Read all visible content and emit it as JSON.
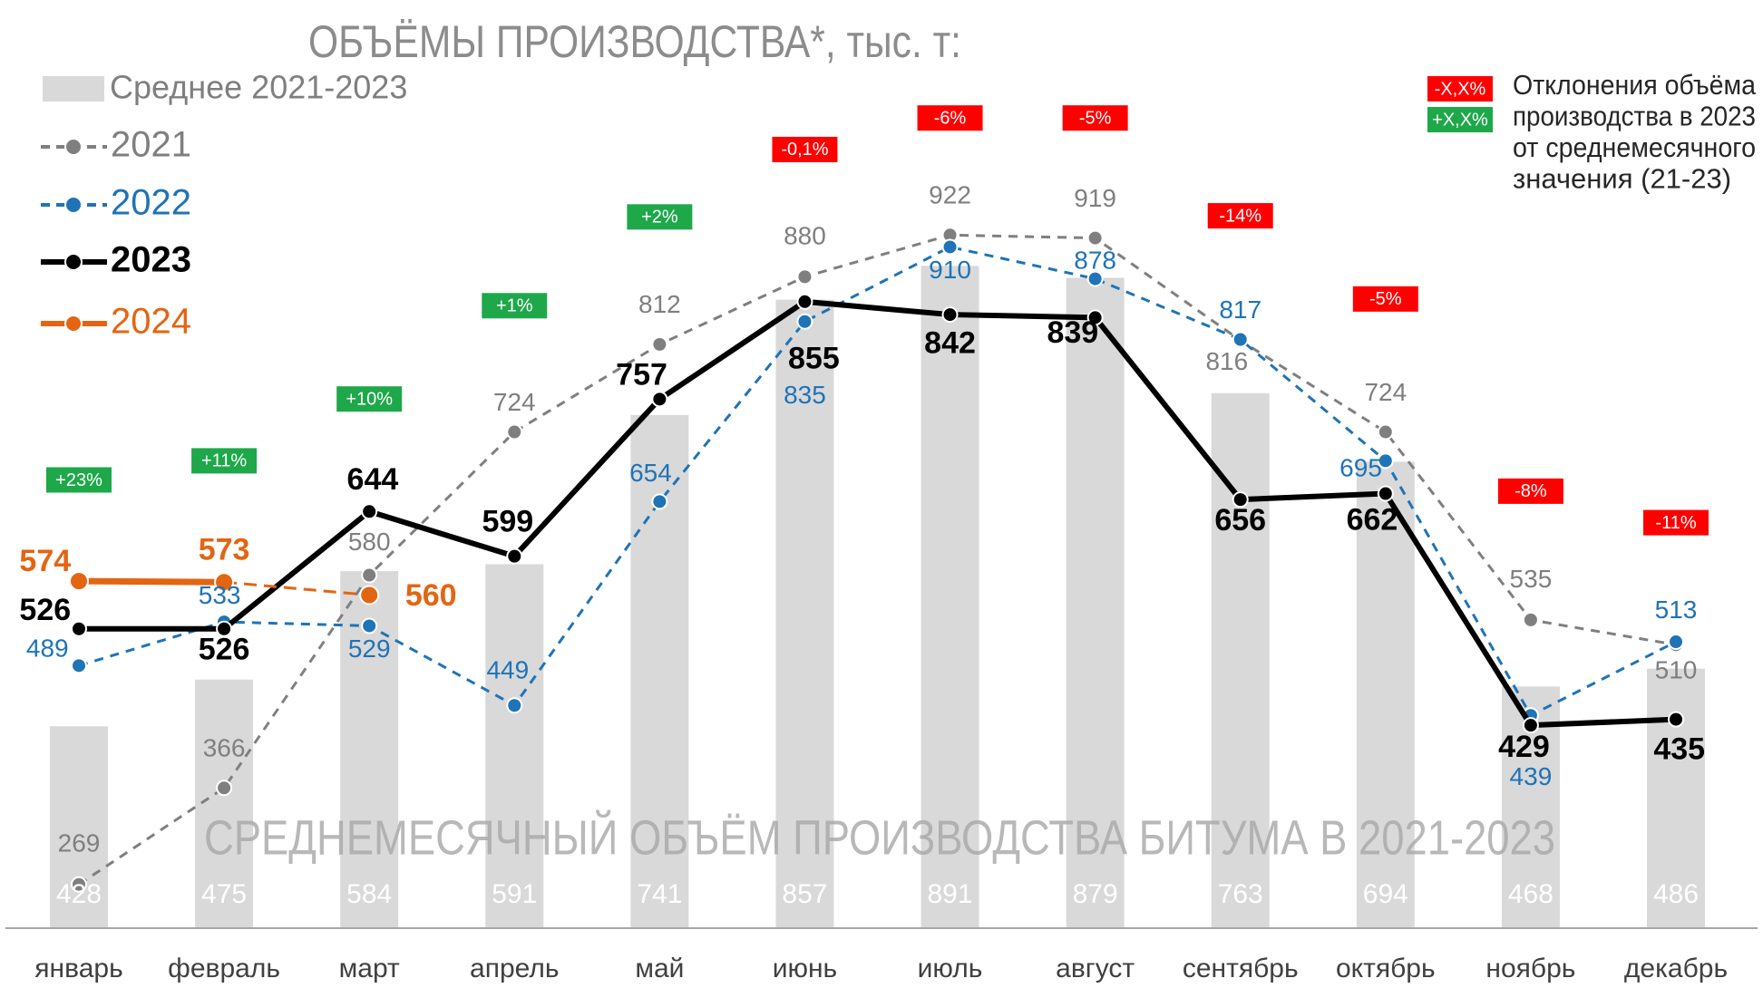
{
  "chart_data": {
    "type": "line",
    "title": "ОБЪЁМЫ ПРОИЗВОДСТВА*, тыс. т:",
    "annotation": "СРЕДНЕМЕСЯЧНЫЙ ОБЪЁМ ПРОИЗВОДСТВА БИТУМА В 2021-2023",
    "categories": [
      "январь",
      "февраль",
      "март",
      "апрель",
      "май",
      "июнь",
      "июль",
      "август",
      "сентябрь",
      "октябрь",
      "ноябрь",
      "декабрь"
    ],
    "ylim": [
      225,
      1100
    ],
    "series": [
      {
        "name": "Среднее 2021-2023",
        "type": "bar",
        "color": "#d9d9d9",
        "values": [
          428,
          475,
          584,
          591,
          741,
          857,
          891,
          879,
          763,
          694,
          468,
          486
        ]
      },
      {
        "name": "2021",
        "type": "line",
        "color": "#7f7f7f",
        "line_style": "dashed",
        "values": [
          269,
          366,
          580,
          724,
          812,
          880,
          922,
          919,
          816,
          724,
          535,
          510
        ]
      },
      {
        "name": "2022",
        "type": "line",
        "color": "#1f73b7",
        "line_style": "dashed",
        "values": [
          489,
          533,
          529,
          449,
          654,
          835,
          910,
          878,
          817,
          695,
          439,
          513
        ]
      },
      {
        "name": "2023",
        "type": "line",
        "color": "#000000",
        "line_style": "solid",
        "values": [
          526,
          526,
          644,
          599,
          757,
          855,
          842,
          839,
          656,
          662,
          429,
          435
        ]
      },
      {
        "name": "2024",
        "type": "line",
        "color": "#e36512",
        "line_style": "solid",
        "dashed_last_segment": true,
        "values": [
          574,
          573,
          560,
          null,
          null,
          null,
          null,
          null,
          null,
          null,
          null,
          null
        ]
      }
    ],
    "deviations": {
      "values": [
        23,
        11,
        10,
        1,
        2,
        -0.1,
        -6,
        -5,
        -14,
        -5,
        -8,
        -11
      ],
      "labels": [
        "+23%",
        "+11%",
        "+10%",
        "+1%",
        "+2%",
        "-0,1%",
        "-6%",
        "-5%",
        "-14%",
        "-5%",
        "-8%",
        "-11%"
      ],
      "positive_color": "#1ea84a",
      "negative_color": "#ff0000"
    },
    "deviation_legend": {
      "negative_label": "-X,X%",
      "positive_label": "+X,X%",
      "text": [
        "Отклонения объёма",
        "производства в 2023",
        "от среднемесячного",
        "значения (21-23)"
      ]
    }
  }
}
